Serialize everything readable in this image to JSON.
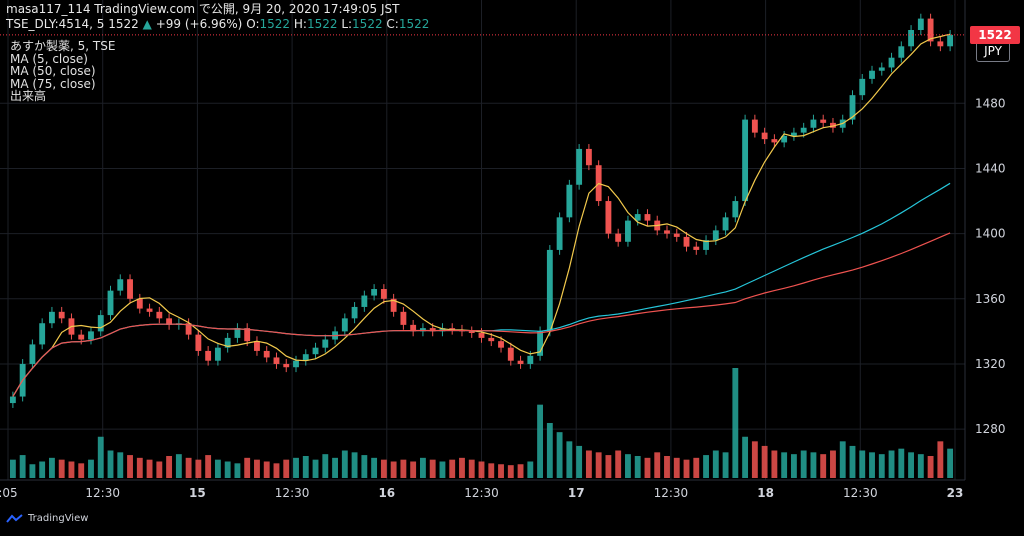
{
  "header": {
    "line1": "masa117_114 TradingView.com で公開, 9月 20, 2020 17:49:05 JST",
    "symbol": "TSE_DLY:4514, 5 1522",
    "change": "+99 (+6.96%)",
    "o_label": "O:",
    "o": "1522",
    "h_label": "H:",
    "h": "1522",
    "l_label": "L:",
    "l": "1522",
    "c_label": "C:",
    "c": "1522"
  },
  "legend": [
    "あすか製薬, 5, TSE",
    "MA (5, close)",
    "MA (50, close)",
    "MA (75, close)",
    "出来高"
  ],
  "currency": "JPY",
  "last_price": "1522",
  "footer": {
    "brand": "TradingView"
  },
  "colors": {
    "up": "#26a69a",
    "down": "#ef5350",
    "ma5": "#f2c94c",
    "ma50": "#26c6da",
    "ma75": "#ef5350",
    "vol_up": "#26a69a",
    "vol_down": "#ef5350"
  },
  "chart_data": {
    "type": "candlestick",
    "y_ticks": [
      1280,
      1320,
      1360,
      1400,
      1440,
      1480
    ],
    "ylim": [
      1250,
      1525
    ],
    "x_ticks": [
      ":05",
      "12:30",
      "15",
      "12:30",
      "16",
      "12:30",
      "17",
      "12:30",
      "18",
      "12:30",
      "23"
    ],
    "x_tick_pos": [
      0,
      20,
      40,
      60,
      80,
      100,
      120,
      140,
      160,
      180,
      200
    ],
    "xlim": [
      0,
      200
    ],
    "close": [
      1300,
      1320,
      1332,
      1345,
      1352,
      1348,
      1338,
      1335,
      1340,
      1350,
      1365,
      1372,
      1360,
      1354,
      1352,
      1348,
      1344,
      1345,
      1338,
      1328,
      1322,
      1330,
      1336,
      1342,
      1334,
      1328,
      1324,
      1320,
      1318,
      1322,
      1326,
      1330,
      1335,
      1340,
      1348,
      1355,
      1362,
      1366,
      1360,
      1352,
      1344,
      1340,
      1342,
      1340,
      1342,
      1341,
      1340,
      1339,
      1336,
      1334,
      1330,
      1322,
      1320,
      1325,
      1340,
      1390,
      1410,
      1430,
      1452,
      1442,
      1420,
      1400,
      1395,
      1408,
      1412,
      1408,
      1402,
      1400,
      1398,
      1392,
      1390,
      1396,
      1402,
      1410,
      1420,
      1470,
      1462,
      1458,
      1456,
      1460,
      1462,
      1465,
      1470,
      1468,
      1465,
      1470,
      1485,
      1495,
      1500,
      1502,
      1508,
      1515,
      1525,
      1532,
      1518,
      1515,
      1522
    ],
    "volume": [
      20,
      25,
      15,
      18,
      22,
      20,
      18,
      16,
      20,
      45,
      30,
      28,
      25,
      22,
      20,
      18,
      24,
      26,
      22,
      20,
      25,
      20,
      18,
      16,
      22,
      20,
      18,
      16,
      20,
      22,
      24,
      20,
      26,
      22,
      30,
      28,
      25,
      22,
      20,
      18,
      20,
      18,
      22,
      20,
      18,
      20,
      22,
      20,
      18,
      16,
      15,
      14,
      15,
      18,
      80,
      60,
      50,
      40,
      35,
      30,
      28,
      25,
      30,
      26,
      24,
      22,
      28,
      24,
      22,
      20,
      22,
      25,
      30,
      28,
      120,
      45,
      40,
      35,
      30,
      28,
      26,
      30,
      28,
      26,
      30,
      40,
      35,
      30,
      28,
      26,
      30,
      32,
      28,
      26,
      24,
      40,
      32
    ],
    "ma5_label": "MA (5, close)",
    "ma50_label": "MA (50, close)",
    "ma75_label": "MA (75, close)"
  }
}
